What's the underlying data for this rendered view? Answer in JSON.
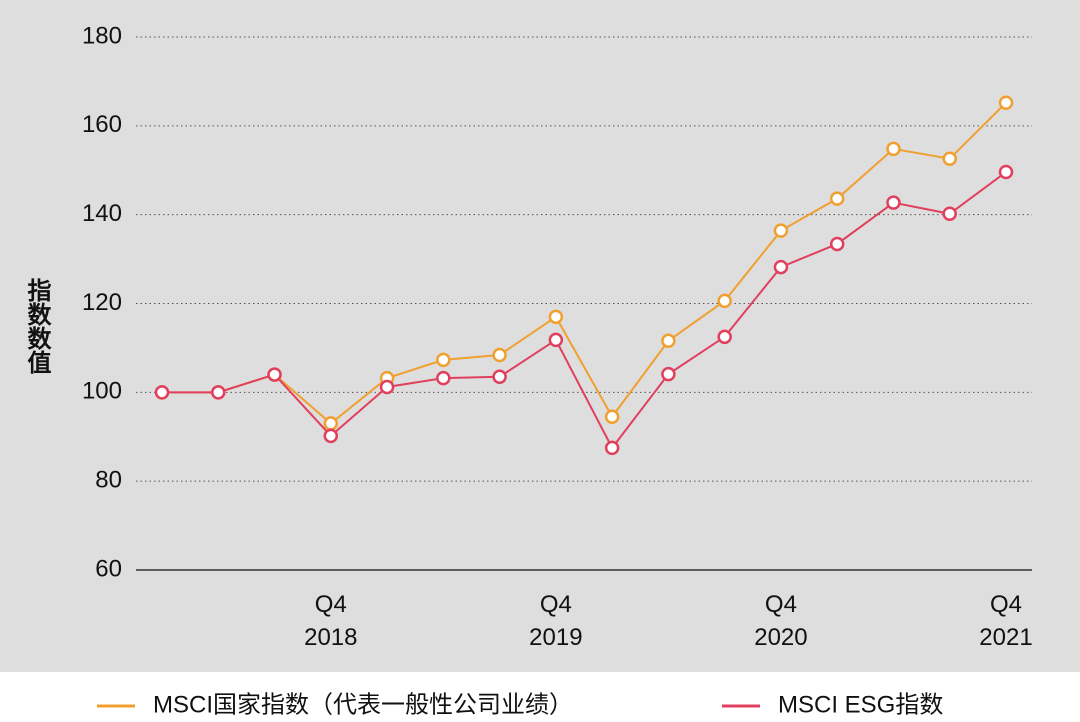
{
  "chart_data": {
    "type": "line",
    "y_label": "指数数值",
    "categories": [
      null,
      null,
      null,
      "Q4 2018",
      null,
      null,
      null,
      "Q4 2019",
      null,
      null,
      null,
      "Q4 2020",
      null,
      null,
      null,
      "Q4 2021"
    ],
    "series": [
      {
        "name": "MSCI国家指数（代表一般性公司业绩）",
        "color": "#f0a030",
        "values": [
          100,
          100,
          104,
          93,
          103.2,
          107.3,
          108.4,
          117,
          94.5,
          111.6,
          120.6,
          136.4,
          143.6,
          154.8,
          152.6,
          165.2
        ]
      },
      {
        "name": "MSCI ESG指数",
        "color": "#e0405e",
        "values": [
          100,
          100,
          104,
          90.2,
          101.2,
          103.2,
          103.5,
          111.8,
          87.5,
          104.1,
          112.5,
          128.2,
          133.4,
          142.7,
          140.2,
          149.6
        ]
      }
    ],
    "ylim": [
      60,
      180
    ],
    "yticks": [
      60,
      80,
      100,
      120,
      140,
      160,
      180
    ],
    "grid": true
  }
}
